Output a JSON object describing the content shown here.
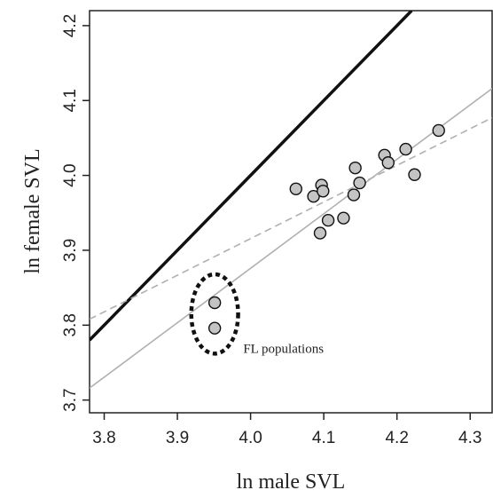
{
  "chart_data": {
    "type": "scatter",
    "xlabel": "ln male SVL",
    "ylabel": "ln female SVL",
    "xlim": [
      3.78,
      4.33
    ],
    "ylim": [
      3.683,
      4.22
    ],
    "x_ticks": [
      "3.8",
      "3.9",
      "4.0",
      "4.1",
      "4.2",
      "4.3"
    ],
    "y_ticks": [
      "3.7",
      "3.8",
      "3.9",
      "4.0",
      "4.1",
      "4.2"
    ],
    "grid": false,
    "points": [
      {
        "x": 4.062,
        "y": 3.982
      },
      {
        "x": 4.086,
        "y": 3.972
      },
      {
        "x": 4.097,
        "y": 3.987
      },
      {
        "x": 4.099,
        "y": 3.979
      },
      {
        "x": 4.095,
        "y": 3.923
      },
      {
        "x": 4.106,
        "y": 3.94
      },
      {
        "x": 4.127,
        "y": 3.943
      },
      {
        "x": 4.141,
        "y": 3.974
      },
      {
        "x": 4.143,
        "y": 4.01
      },
      {
        "x": 4.149,
        "y": 3.99
      },
      {
        "x": 4.183,
        "y": 4.027
      },
      {
        "x": 4.188,
        "y": 4.017
      },
      {
        "x": 4.212,
        "y": 4.035
      },
      {
        "x": 4.224,
        "y": 4.001
      },
      {
        "x": 4.257,
        "y": 4.06
      },
      {
        "x": 3.951,
        "y": 3.83
      },
      {
        "x": 3.951,
        "y": 3.796
      }
    ],
    "lines": [
      {
        "style": "solid-thick-black",
        "from": [
          3.78,
          3.78
        ],
        "to": [
          4.22,
          4.22
        ]
      },
      {
        "style": "solid-thin-gray",
        "from": [
          3.78,
          3.716
        ],
        "to": [
          4.33,
          4.116
        ]
      },
      {
        "style": "dashed-gray",
        "from": [
          3.78,
          3.808
        ],
        "to": [
          4.33,
          4.077
        ]
      }
    ],
    "annotations": [
      {
        "text": "FL populations",
        "x": 3.99,
        "y": 3.763
      }
    ],
    "highlight_ellipse": {
      "center": [
        3.951,
        3.815
      ],
      "rx": 0.032,
      "ry": 0.053
    }
  }
}
